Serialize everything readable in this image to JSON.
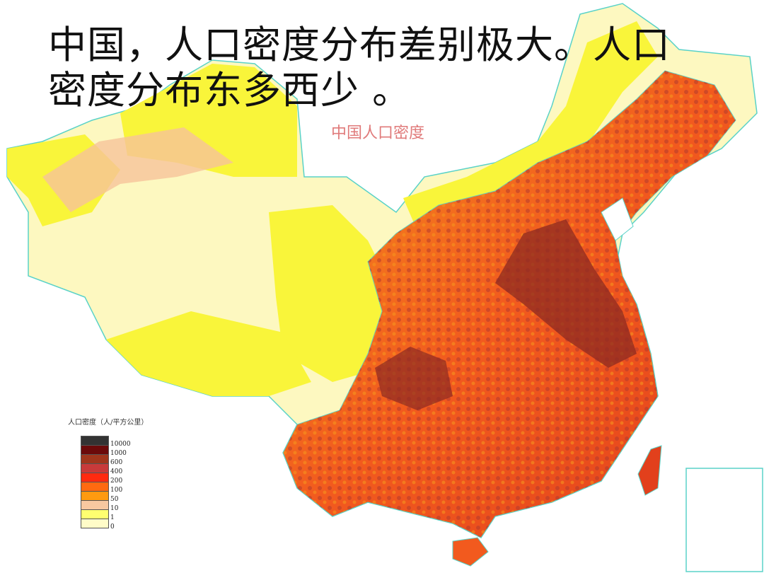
{
  "slide": {
    "title": "中国，人口密度分布差别极大。人口密度分布东多西少 。"
  },
  "map": {
    "title": "中国人口密度",
    "colors": {
      "west_low": "#fdf8c0",
      "west_yellow": "#f9f53a",
      "light": "#f6c39a",
      "mid": "#f5931e",
      "high": "#f25a1e",
      "very_high": "#b33a2e",
      "peak": "#6f1010",
      "border": "#5ad2c8"
    }
  },
  "legend": {
    "title": "人口密度（人/平方公里）",
    "items": [
      {
        "label": "10000",
        "color": "#333333"
      },
      {
        "label": "1000",
        "color": "#6b0a0a"
      },
      {
        "label": "600",
        "color": "#a0361c"
      },
      {
        "label": "400",
        "color": "#c83a3a"
      },
      {
        "label": "200",
        "color": "#ff2a10"
      },
      {
        "label": "100",
        "color": "#ff6a10"
      },
      {
        "label": "50",
        "color": "#ff9a10"
      },
      {
        "label": "10",
        "color": "#f8c8a0"
      },
      {
        "label": "1",
        "color": "#ffff70"
      },
      {
        "label": "0",
        "color": "#fffcc8"
      }
    ]
  }
}
